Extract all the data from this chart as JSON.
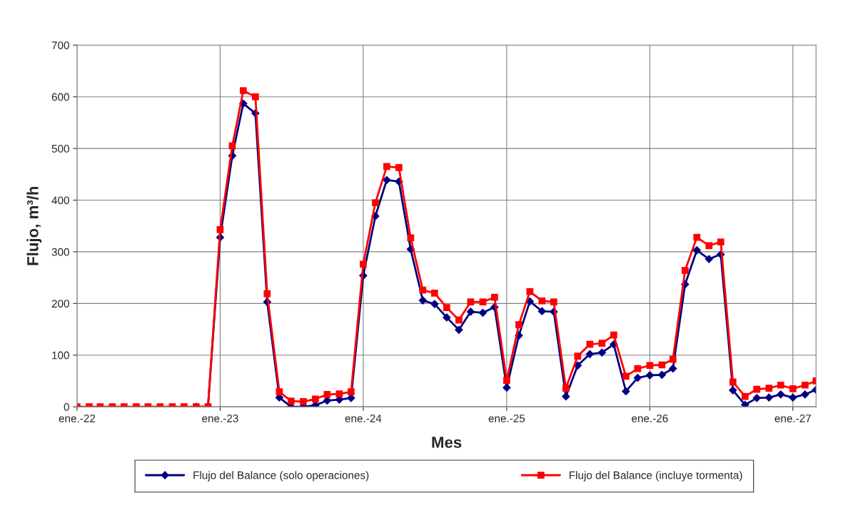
{
  "chart_data": {
    "type": "line",
    "xlabel": "Mes",
    "ylabel": "Flujo, m³/h",
    "x": [
      "2022-01",
      "2022-02",
      "2022-03",
      "2022-04",
      "2022-05",
      "2022-06",
      "2022-07",
      "2022-08",
      "2022-09",
      "2022-10",
      "2022-11",
      "2022-12",
      "2023-01",
      "2023-02",
      "2023-03",
      "2023-04",
      "2023-05",
      "2023-06",
      "2023-07",
      "2023-08",
      "2023-09",
      "2023-10",
      "2023-11",
      "2023-12",
      "2024-01",
      "2024-02",
      "2024-03",
      "2024-04",
      "2024-05",
      "2024-06",
      "2024-07",
      "2024-08",
      "2024-09",
      "2024-10",
      "2024-11",
      "2024-12",
      "2025-01",
      "2025-02",
      "2025-03",
      "2025-04",
      "2025-05",
      "2025-06",
      "2025-07",
      "2025-08",
      "2025-09",
      "2025-10",
      "2025-11",
      "2025-12",
      "2026-01",
      "2026-02",
      "2026-03",
      "2026-04",
      "2026-05",
      "2026-06",
      "2026-07",
      "2026-08",
      "2026-09",
      "2026-10",
      "2026-11",
      "2026-12",
      "2027-01",
      "2027-02",
      "2027-03"
    ],
    "series": [
      {
        "name": "Flujo del Balance (solo operaciones)",
        "color": "#000080",
        "marker": "diamond",
        "values": [
          null,
          null,
          null,
          null,
          null,
          null,
          null,
          null,
          null,
          null,
          0,
          0,
          328,
          486,
          587,
          568,
          203,
          18,
          0,
          0,
          3,
          12,
          14,
          17,
          254,
          369,
          439,
          436,
          305,
          206,
          199,
          173,
          149,
          184,
          182,
          193,
          37,
          138,
          204,
          185,
          184,
          20,
          80,
          102,
          105,
          121,
          30,
          56,
          61,
          62,
          74,
          237,
          303,
          286,
          295,
          32,
          4,
          17,
          18,
          24,
          18,
          24,
          33
        ]
      },
      {
        "name": "Flujo del Balance (incluye tormenta)",
        "color": "#ff0000",
        "marker": "square",
        "values": [
          0,
          0,
          0,
          0,
          0,
          0,
          0,
          0,
          0,
          0,
          0,
          0,
          343,
          505,
          612,
          600,
          219,
          29,
          11,
          10,
          15,
          24,
          25,
          29,
          276,
          395,
          465,
          463,
          327,
          226,
          220,
          192,
          168,
          203,
          203,
          212,
          51,
          159,
          223,
          205,
          203,
          36,
          98,
          121,
          123,
          139,
          59,
          74,
          80,
          81,
          92,
          264,
          328,
          312,
          319,
          48,
          20,
          34,
          36,
          42,
          35,
          42,
          50
        ]
      }
    ],
    "xlim": [
      "2022-01",
      "2027-03"
    ],
    "xticks": [
      {
        "value": "2022-01",
        "label": "ene.-22"
      },
      {
        "value": "2023-01",
        "label": "ene.-23"
      },
      {
        "value": "2024-01",
        "label": "ene.-24"
      },
      {
        "value": "2025-01",
        "label": "ene.-25"
      },
      {
        "value": "2026-01",
        "label": "ene.-26"
      },
      {
        "value": "2027-01",
        "label": "ene.-27"
      }
    ],
    "ylim": [
      0,
      700
    ],
    "yticks": [
      0,
      100,
      200,
      300,
      400,
      500,
      600,
      700
    ],
    "grid": true,
    "legend": "bottom",
    "line_style": "solid"
  }
}
